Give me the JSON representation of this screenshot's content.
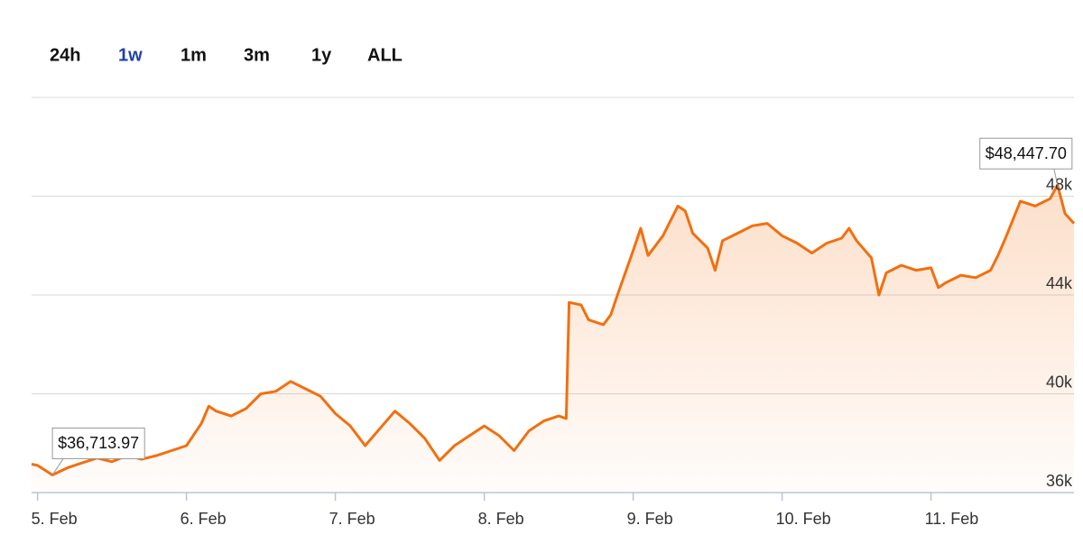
{
  "range_buttons": {
    "labels": [
      "24h",
      "1w",
      "1m",
      "3m",
      "1y",
      "ALL"
    ],
    "selected": 1
  },
  "chart_data": {
    "type": "area",
    "color": "#f26f0f",
    "x": [
      4.96,
      5.0,
      5.1,
      5.2,
      5.3,
      5.4,
      5.5,
      5.6,
      5.7,
      5.8,
      5.9,
      6.0,
      6.1,
      6.15,
      6.2,
      6.3,
      6.4,
      6.5,
      6.6,
      6.7,
      6.8,
      6.9,
      7.0,
      7.1,
      7.2,
      7.3,
      7.4,
      7.5,
      7.6,
      7.7,
      7.8,
      7.9,
      8.0,
      8.1,
      8.2,
      8.3,
      8.4,
      8.5,
      8.55,
      8.57,
      8.65,
      8.7,
      8.8,
      8.85,
      8.9,
      9.0,
      9.05,
      9.1,
      9.2,
      9.3,
      9.35,
      9.4,
      9.5,
      9.55,
      9.6,
      9.7,
      9.8,
      9.9,
      10.0,
      10.1,
      10.2,
      10.3,
      10.4,
      10.45,
      10.5,
      10.6,
      10.65,
      10.7,
      10.8,
      10.9,
      11.0,
      11.05,
      11.1,
      11.2,
      11.3,
      11.4,
      11.45,
      11.5,
      11.6,
      11.7,
      11.8,
      11.85,
      11.9,
      11.96
    ],
    "values": [
      37150,
      37100,
      36713.97,
      37000,
      37200,
      37400,
      37250,
      37500,
      37350,
      37500,
      37700,
      37900,
      38800,
      39500,
      39300,
      39100,
      39400,
      40000,
      40100,
      40500,
      40200,
      39900,
      39200,
      38700,
      37900,
      38600,
      39300,
      38800,
      38200,
      37300,
      37900,
      38300,
      38700,
      38300,
      37700,
      38500,
      38900,
      39100,
      39000,
      43700,
      43600,
      43000,
      42800,
      43200,
      44100,
      45800,
      46700,
      45600,
      46400,
      47600,
      47400,
      46500,
      45900,
      45000,
      46200,
      46500,
      46800,
      46900,
      46400,
      46100,
      45700,
      46100,
      46300,
      46700,
      46200,
      45500,
      44000,
      44900,
      45200,
      45000,
      45100,
      44300,
      44500,
      44800,
      44700,
      45000,
      45600,
      46300,
      47800,
      47600,
      47900,
      48447.7,
      47300,
      46900
    ],
    "xlim": [
      4.96,
      11.96
    ],
    "xticks": [
      {
        "value": 5,
        "label": "5. Feb"
      },
      {
        "value": 6,
        "label": "6. Feb"
      },
      {
        "value": 7,
        "label": "7. Feb"
      },
      {
        "value": 8,
        "label": "8. Feb"
      },
      {
        "value": 9,
        "label": "9. Feb"
      },
      {
        "value": 10,
        "label": "10. Feb"
      },
      {
        "value": 11,
        "label": "11. Feb"
      }
    ],
    "ylim": [
      36000,
      52000
    ],
    "yticks": [
      {
        "value": 36000,
        "label": "36k"
      },
      {
        "value": 40000,
        "label": "40k"
      },
      {
        "value": 44000,
        "label": "44k"
      },
      {
        "value": 48000,
        "label": "48k"
      }
    ],
    "grid": true,
    "annotations": [
      {
        "x": 5.1,
        "y": 36713.97,
        "label": "$36,713.97"
      },
      {
        "x": 11.85,
        "y": 48447.7,
        "label": "$48,447.70"
      }
    ]
  }
}
